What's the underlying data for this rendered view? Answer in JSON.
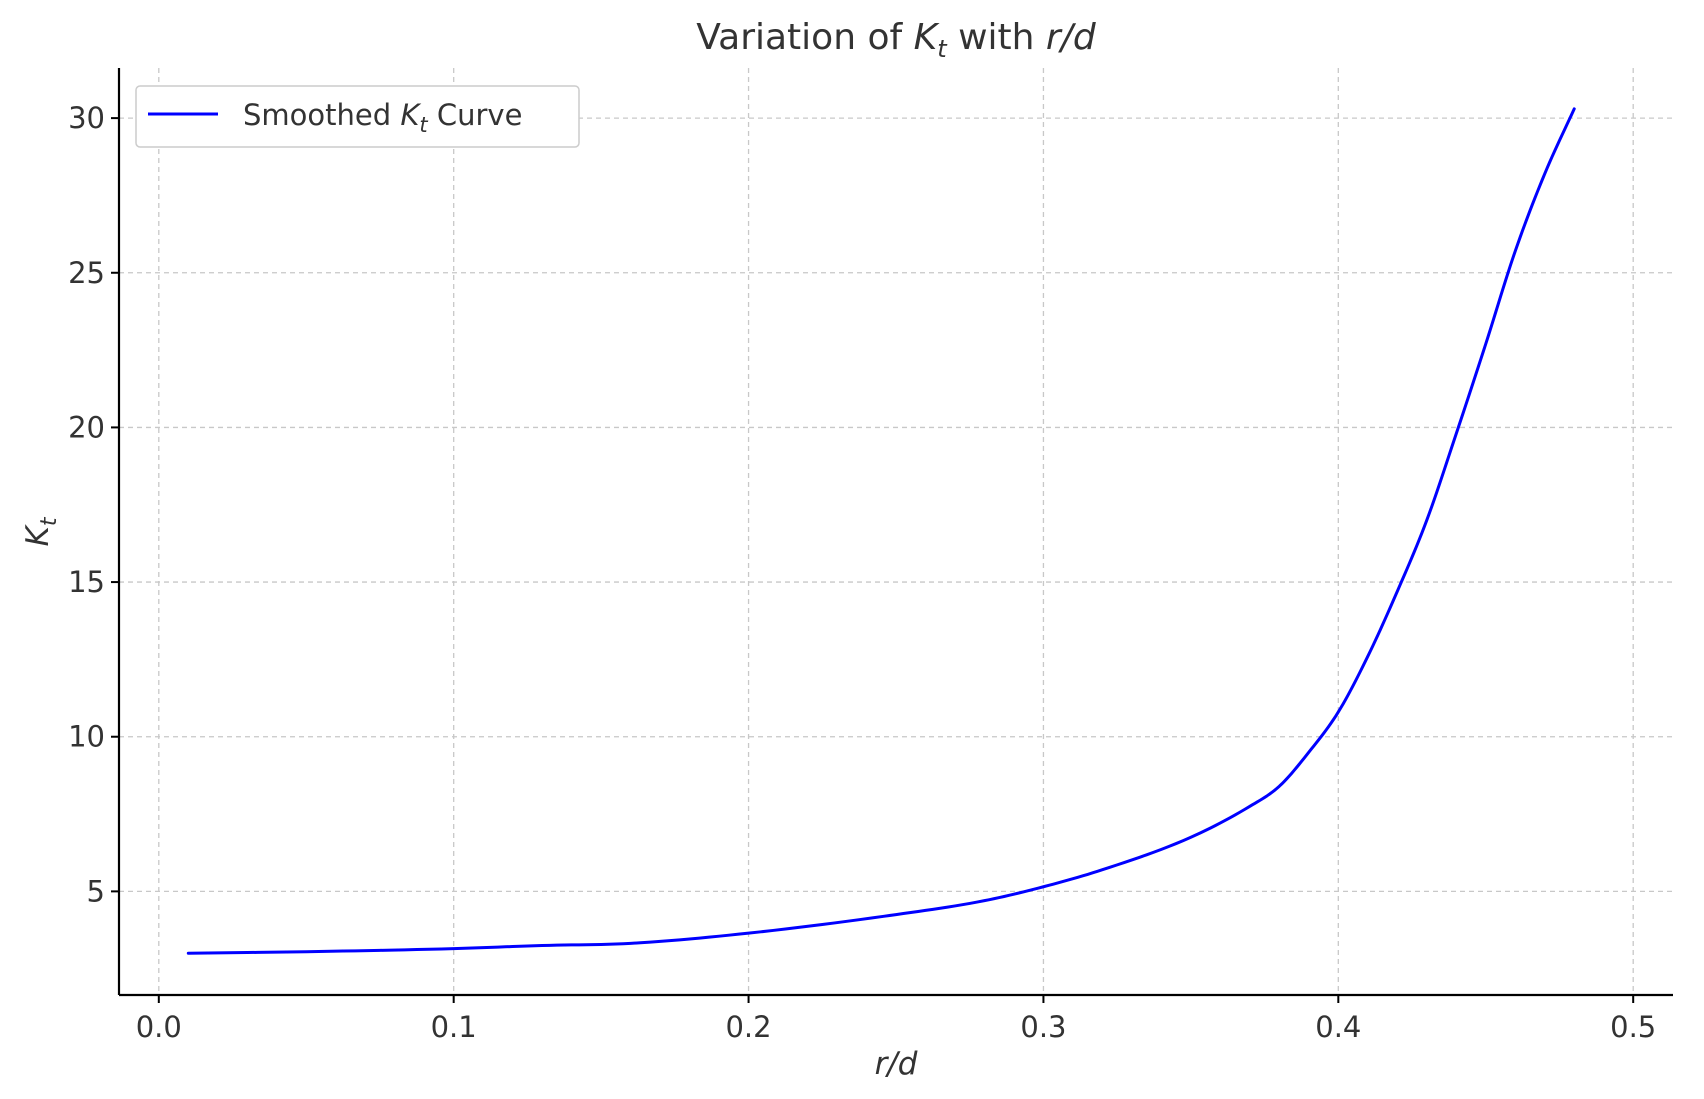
{
  "chart_data": {
    "type": "line",
    "title_parts": {
      "prefix": "Variation of ",
      "k": "K",
      "t": "t",
      "mid": " with ",
      "xvar": "r/d"
    },
    "xlabel": "r/d",
    "ylabel_parts": {
      "k": "K",
      "t": "t"
    },
    "xlim": [
      -0.0135,
      0.5135
    ],
    "ylim": [
      1.65,
      31.62
    ],
    "xticks": [
      0.0,
      0.1,
      0.2,
      0.3,
      0.4,
      0.5
    ],
    "xtick_labels": [
      "0.0",
      "0.1",
      "0.2",
      "0.3",
      "0.4",
      "0.5"
    ],
    "yticks": [
      5,
      10,
      15,
      20,
      25,
      30
    ],
    "ytick_labels": [
      "5",
      "10",
      "15",
      "20",
      "25",
      "30"
    ],
    "grid": true,
    "legend_position": "top-left",
    "series": [
      {
        "legend_parts": {
          "prefix": "Smoothed ",
          "k": "K",
          "t": "t",
          "suffix": " Curve"
        },
        "color": "#0000ff",
        "x": [
          0.01,
          0.05,
          0.1,
          0.13,
          0.16,
          0.2,
          0.25,
          0.28,
          0.3,
          0.32,
          0.35,
          0.37,
          0.38,
          0.39,
          0.4,
          0.41,
          0.42,
          0.43,
          0.44,
          0.45,
          0.46,
          0.47,
          0.48
        ],
        "y": [
          3.0,
          3.05,
          3.15,
          3.25,
          3.32,
          3.65,
          4.25,
          4.7,
          5.15,
          5.7,
          6.75,
          7.75,
          8.4,
          9.5,
          10.8,
          12.6,
          14.7,
          17.0,
          19.8,
          22.7,
          25.7,
          28.2,
          30.3
        ]
      }
    ]
  }
}
